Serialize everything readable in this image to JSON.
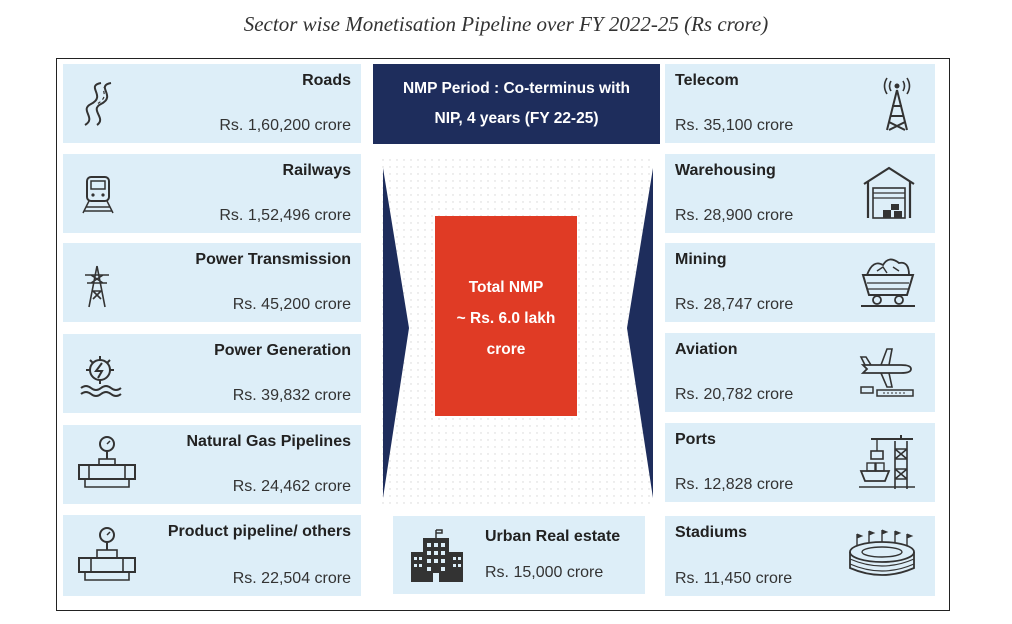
{
  "title": "Sector wise Monetisation Pipeline over FY 2022-25 (Rs crore)",
  "period": {
    "line1": "NMP Period : Co-terminus with",
    "line2": "NIP,  4 years (FY 22-25)"
  },
  "total": {
    "line1": "Total NMP",
    "line2": "~ Rs. 6.0  lakh",
    "line3": "crore"
  },
  "colors": {
    "card_bg": "#ddeef8",
    "navy": "#1e2d5c",
    "red": "#e03b25"
  },
  "left": [
    {
      "name": "Roads",
      "value": "Rs. 1,60,200 crore",
      "icon": "road-icon"
    },
    {
      "name": "Railways",
      "value": "Rs. 1,52,496 crore",
      "icon": "train-icon"
    },
    {
      "name": "Power Transmission",
      "value": "Rs. 45,200 crore",
      "icon": "transmission-tower-icon"
    },
    {
      "name": "Power Generation",
      "value": "Rs. 39,832 crore",
      "icon": "power-plant-icon"
    },
    {
      "name": "Natural Gas Pipelines",
      "value": "Rs. 24,462 crore",
      "icon": "pipeline-icon"
    },
    {
      "name": "Product pipeline/ others",
      "value": "Rs. 22,504 crore",
      "icon": "pipeline-valve-icon"
    }
  ],
  "right": [
    {
      "name": "Telecom",
      "value": "Rs. 35,100 crore",
      "icon": "telecom-tower-icon"
    },
    {
      "name": "Warehousing",
      "value": "Rs. 28,900 crore",
      "icon": "warehouse-icon"
    },
    {
      "name": "Mining",
      "value": "Rs. 28,747 crore",
      "icon": "mining-cart-icon"
    },
    {
      "name": "Aviation",
      "value": "Rs. 20,782 crore",
      "icon": "airplane-icon"
    },
    {
      "name": "Ports",
      "value": "Rs. 12,828 crore",
      "icon": "port-crane-icon"
    },
    {
      "name": "Stadiums",
      "value": "Rs. 11,450 crore",
      "icon": "stadium-icon"
    }
  ],
  "urban": {
    "name": "Urban Real estate",
    "value": "Rs. 15,000 crore",
    "icon": "building-icon"
  }
}
